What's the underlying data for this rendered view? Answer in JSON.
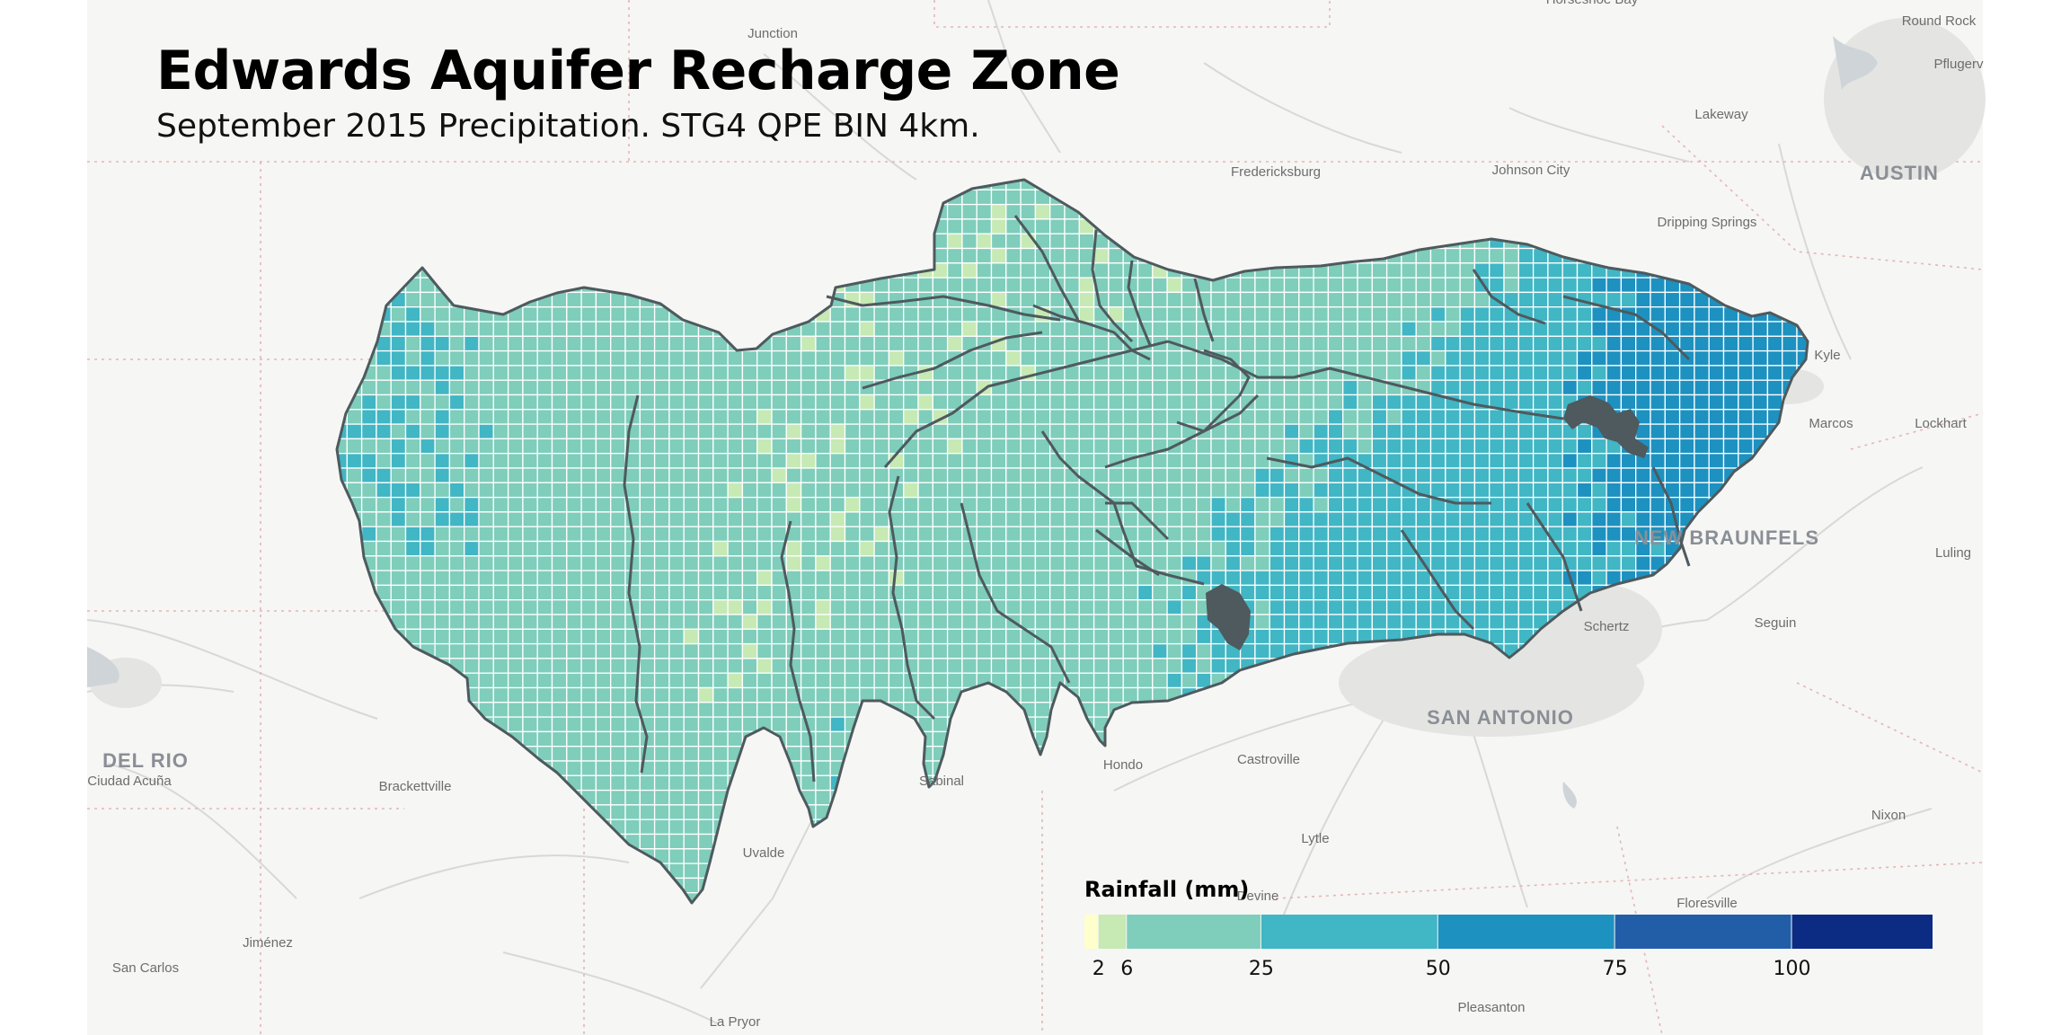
{
  "title": "Edwards Aquifer Recharge Zone",
  "subtitle": "September 2015 Precipitation. STG4 QPE BIN 4km.",
  "legend": {
    "title": "Rainfall (mm)",
    "domain": [
      0,
      120
    ],
    "bins": [
      {
        "from": 0,
        "to": 2,
        "color": "#ffffcc"
      },
      {
        "from": 2,
        "to": 6,
        "color": "#c7e9b4"
      },
      {
        "from": 6,
        "to": 25,
        "color": "#7fcdbb"
      },
      {
        "from": 25,
        "to": 50,
        "color": "#41b6c4"
      },
      {
        "from": 50,
        "to": 75,
        "color": "#1d91c0"
      },
      {
        "from": 75,
        "to": 100,
        "color": "#225ea8"
      },
      {
        "from": 100,
        "to": 120,
        "color": "#0c2c84"
      }
    ],
    "ticks": [
      "2",
      "6",
      "25",
      "50",
      "75",
      "100"
    ]
  },
  "places": [
    {
      "name": "Junction",
      "size": "small"
    },
    {
      "name": "Horseshoe Bay",
      "size": "small"
    },
    {
      "name": "Round Rock",
      "size": "small"
    },
    {
      "name": "Pflugerv",
      "size": "small"
    },
    {
      "name": "Lakeway",
      "size": "small"
    },
    {
      "name": "AUSTIN",
      "size": "big"
    },
    {
      "name": "Fredericksburg",
      "size": "small"
    },
    {
      "name": "Johnson City",
      "size": "small"
    },
    {
      "name": "Dripping Springs",
      "size": "small"
    },
    {
      "name": "Kyle",
      "size": "small"
    },
    {
      "name": "Marcos",
      "size": "small"
    },
    {
      "name": "Lockhart",
      "size": "small"
    },
    {
      "name": "NEW BRAUNFELS",
      "size": "big"
    },
    {
      "name": "Luling",
      "size": "small"
    },
    {
      "name": "Schertz",
      "size": "small"
    },
    {
      "name": "Seguin",
      "size": "small"
    },
    {
      "name": "SAN ANTONIO",
      "size": "big"
    },
    {
      "name": "DEL RIO",
      "size": "big"
    },
    {
      "name": "Ciudad Acuña",
      "size": "small"
    },
    {
      "name": "Brackettville",
      "size": "small"
    },
    {
      "name": "Sabinal",
      "size": "small"
    },
    {
      "name": "Hondo",
      "size": "small"
    },
    {
      "name": "Castroville",
      "size": "small"
    },
    {
      "name": "Uvalde",
      "size": "small"
    },
    {
      "name": "Lytle",
      "size": "small"
    },
    {
      "name": "Nixon",
      "size": "small"
    },
    {
      "name": "Floresville",
      "size": "small"
    },
    {
      "name": "Jiménez",
      "size": "small"
    },
    {
      "name": "San Carlos",
      "size": "small"
    },
    {
      "name": "Pleasanton",
      "size": "small"
    },
    {
      "name": "La Pryor",
      "size": "small"
    },
    {
      "name": "Devine",
      "size": "small"
    }
  ]
}
